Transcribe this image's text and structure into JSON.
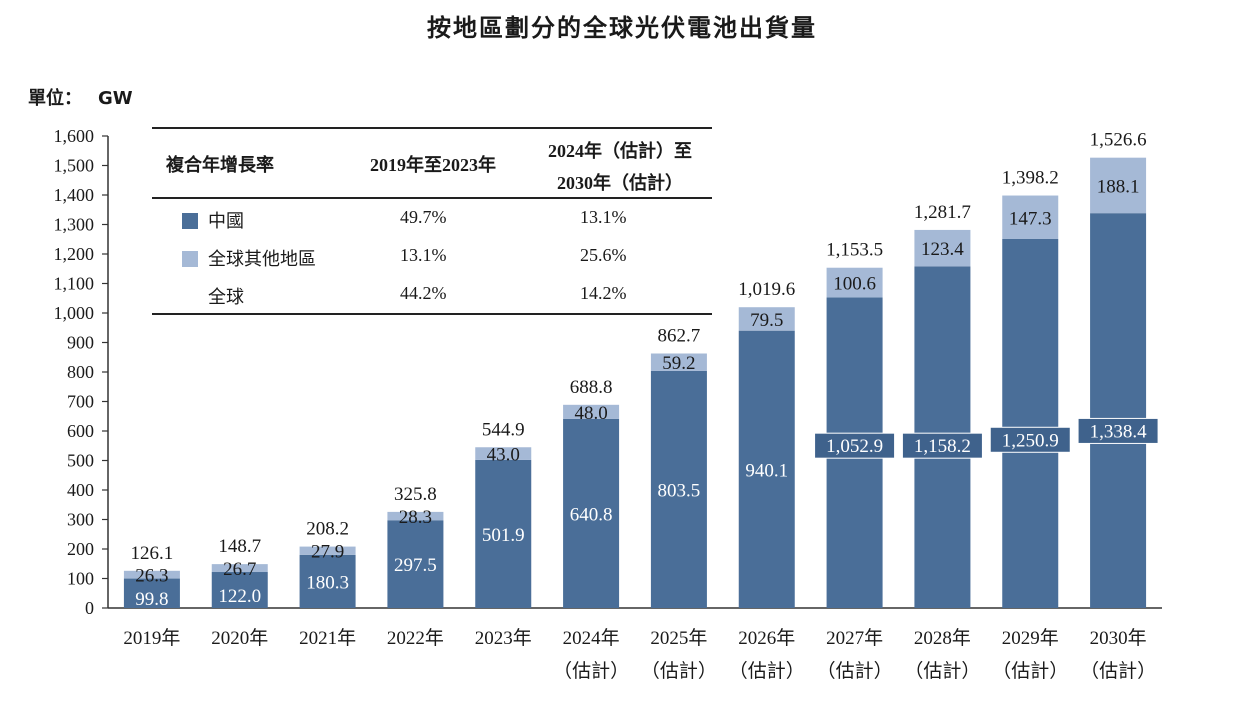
{
  "title": "按地區劃分的全球光伏電池出貨量",
  "unit_label": "單位：",
  "unit_value": "GW",
  "colors": {
    "china": "#4a6e98",
    "other": "#a5b9d6",
    "axis": "#333333"
  },
  "cagr_table": {
    "header_label": "複合年增長率",
    "col1": "2019年至2023年",
    "col2_line1": "2024年（估計）至",
    "col2_line2": "2030年（估計）",
    "rows": [
      {
        "label": "中國",
        "swatch": "china",
        "v1": "49.7%",
        "v2": "13.1%"
      },
      {
        "label": "全球其他地區",
        "swatch": "other",
        "v1": "13.1%",
        "v2": "25.6%"
      },
      {
        "label": "全球",
        "swatch": "none",
        "v1": "44.2%",
        "v2": "14.2%"
      }
    ]
  },
  "chart_data": {
    "type": "bar",
    "stacked": true,
    "title": "按地區劃分的全球光伏電池出貨量",
    "ylabel": "GW",
    "ylim": [
      0,
      1600
    ],
    "yticks": [
      "0",
      "100",
      "200",
      "300",
      "400",
      "500",
      "600",
      "700",
      "800",
      "900",
      "1,000",
      "1,100",
      "1,200",
      "1,300",
      "1,400",
      "1,500",
      "1,600"
    ],
    "categories": [
      [
        "2019年"
      ],
      [
        "2020年"
      ],
      [
        "2021年"
      ],
      [
        "2022年"
      ],
      [
        "2023年"
      ],
      [
        "2024年",
        "（估計）"
      ],
      [
        "2025年",
        "（估計）"
      ],
      [
        "2026年",
        "（估計）"
      ],
      [
        "2027年",
        "（估計）"
      ],
      [
        "2028年",
        "（估計）"
      ],
      [
        "2029年",
        "（估計）"
      ],
      [
        "2030年",
        "（估計）"
      ]
    ],
    "series": [
      {
        "name": "中國",
        "values": [
          99.8,
          122.0,
          180.3,
          297.5,
          501.9,
          640.8,
          803.5,
          940.1,
          1052.9,
          1158.2,
          1250.9,
          1338.4
        ],
        "labels": [
          "99.8",
          "122.0",
          "180.3",
          "297.5",
          "501.9",
          "640.8",
          "803.5",
          "940.1",
          "1,052.9",
          "1,158.2",
          "1,250.9",
          "1,338.4"
        ]
      },
      {
        "name": "全球其他地區",
        "values": [
          26.3,
          26.7,
          27.9,
          28.3,
          43.0,
          48.0,
          59.2,
          79.5,
          100.6,
          123.4,
          147.3,
          188.1
        ],
        "labels": [
          "26.3",
          "26.7",
          "27.9",
          "28.3",
          "43.0",
          "48.0",
          "59.2",
          "79.5",
          "100.6",
          "123.4",
          "147.3",
          "188.1"
        ]
      }
    ],
    "totals": [
      126.1,
      148.7,
      208.2,
      325.8,
      544.9,
      688.8,
      862.7,
      1019.6,
      1153.5,
      1281.7,
      1398.2,
      1526.6
    ],
    "total_labels": [
      "126.1",
      "148.7",
      "208.2",
      "325.8",
      "544.9",
      "688.8",
      "862.7",
      "1,019.6",
      "1,153.5",
      "1,281.7",
      "1,398.2",
      "1,526.6"
    ]
  }
}
